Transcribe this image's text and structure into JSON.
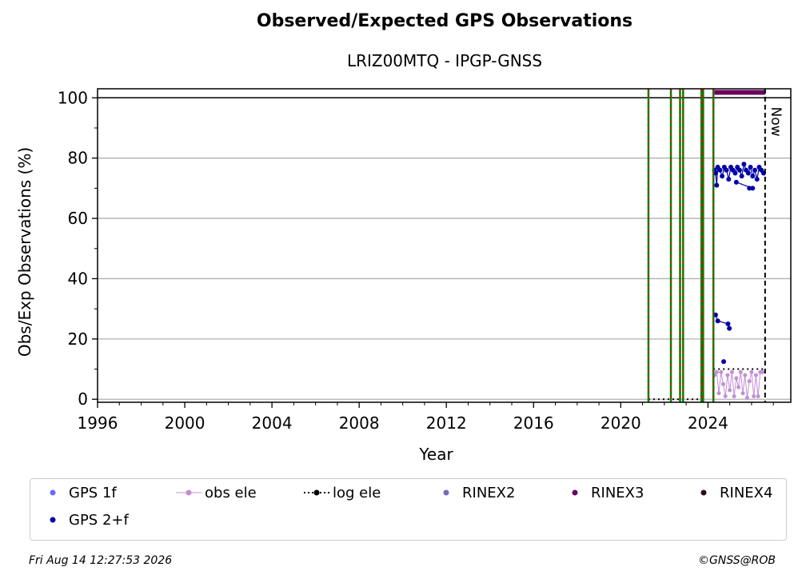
{
  "chart_data": {
    "type": "scatter",
    "title": "Observed/Expected GPS Observations",
    "subtitle": "LRIZ00MTQ - IPGP-GNSS",
    "xlabel": "Year",
    "ylabel": "Obs/Exp Observations (%)",
    "xlim": [
      1996,
      2027.8
    ],
    "ylim": [
      -1,
      103
    ],
    "x_ticks": [
      1996,
      2000,
      2004,
      2008,
      2012,
      2016,
      2020,
      2024
    ],
    "y_ticks": [
      0,
      20,
      40,
      60,
      80,
      100
    ],
    "grid": "horizontal",
    "legend_position": "bottom",
    "now_label": "Now",
    "now_x": 2026.62,
    "reference_line_y": 100,
    "event_lines_x": [
      2021.27,
      2022.3,
      2022.72,
      2022.86,
      2023.7,
      2023.78,
      2024.25
    ],
    "series": [
      {
        "name": "GPS 1f",
        "color": "#6b6bff",
        "points": []
      },
      {
        "name": "GPS 2+f",
        "color": "#0000a8",
        "points": [
          [
            2024.3,
            76
          ],
          [
            2024.35,
            75
          ],
          [
            2024.4,
            71
          ],
          [
            2024.45,
            77
          ],
          [
            2024.55,
            76
          ],
          [
            2024.65,
            74
          ],
          [
            2024.75,
            77
          ],
          [
            2024.85,
            76
          ],
          [
            2024.95,
            73
          ],
          [
            2025.05,
            77
          ],
          [
            2025.15,
            76
          ],
          [
            2025.25,
            75
          ],
          [
            2025.35,
            77
          ],
          [
            2025.45,
            76
          ],
          [
            2025.55,
            74
          ],
          [
            2025.65,
            78
          ],
          [
            2025.75,
            76
          ],
          [
            2025.85,
            75
          ],
          [
            2025.95,
            77
          ],
          [
            2026.05,
            74
          ],
          [
            2026.15,
            76
          ],
          [
            2026.25,
            73
          ],
          [
            2026.35,
            77
          ],
          [
            2026.45,
            76
          ],
          [
            2026.55,
            75
          ],
          [
            2024.35,
            28
          ],
          [
            2024.45,
            26
          ],
          [
            2024.92,
            25
          ],
          [
            2024.98,
            23.5
          ],
          [
            2024.72,
            12.5
          ],
          [
            2025.9,
            70
          ],
          [
            2026.05,
            70
          ],
          [
            2025.3,
            72
          ]
        ]
      },
      {
        "name": "obs ele",
        "color": "#c48fd4",
        "points": [
          [
            2024.3,
            8
          ],
          [
            2024.4,
            9
          ],
          [
            2024.5,
            2
          ],
          [
            2024.6,
            9
          ],
          [
            2024.7,
            5
          ],
          [
            2024.8,
            1
          ],
          [
            2024.9,
            8
          ],
          [
            2025.0,
            3
          ],
          [
            2025.1,
            9
          ],
          [
            2025.2,
            1
          ],
          [
            2025.3,
            7
          ],
          [
            2025.4,
            4
          ],
          [
            2025.5,
            9
          ],
          [
            2025.6,
            2
          ],
          [
            2025.7,
            8
          ],
          [
            2025.8,
            0.5
          ],
          [
            2025.9,
            6
          ],
          [
            2026.0,
            9
          ],
          [
            2026.1,
            1
          ],
          [
            2026.2,
            8
          ],
          [
            2026.3,
            1
          ],
          [
            2026.4,
            9
          ],
          [
            2026.5,
            9
          ]
        ]
      },
      {
        "name": "log ele",
        "color": "#000000",
        "points": [
          [
            2021.27,
            0
          ],
          [
            2023.78,
            0
          ],
          [
            2024.25,
            10
          ],
          [
            2026.62,
            10
          ]
        ]
      },
      {
        "name": "RINEX2",
        "color": "#7b68b8",
        "points": []
      },
      {
        "name": "RINEX3",
        "color": "#6a0060",
        "range": [
          2024.3,
          2026.62
        ],
        "y": 101.8
      },
      {
        "name": "RINEX4",
        "color": "#2a0a20",
        "points": []
      }
    ]
  },
  "legend": [
    {
      "label": "GPS 1f",
      "color": "#6b6bff",
      "style": "dot"
    },
    {
      "label": "obs ele",
      "color": "#c48fd4",
      "style": "line-dot"
    },
    {
      "label": "log ele",
      "color": "#000000",
      "style": "dotted-dot"
    },
    {
      "label": "RINEX2",
      "color": "#7b68b8",
      "style": "dot"
    },
    {
      "label": "RINEX3",
      "color": "#6a0060",
      "style": "dot"
    },
    {
      "label": "RINEX4",
      "color": "#2a0a20",
      "style": "dot"
    },
    {
      "label": "GPS 2+f",
      "color": "#0000a8",
      "style": "dot"
    }
  ],
  "footer": {
    "timestamp": "Fri Aug 14 12:27:53 2026",
    "credit": "©GNSS@ROB"
  }
}
